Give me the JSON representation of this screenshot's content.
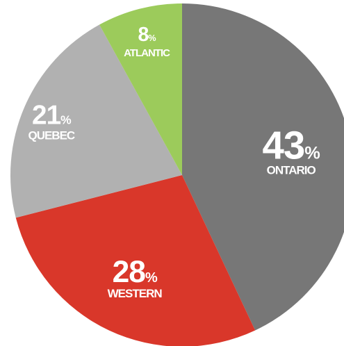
{
  "chart_data": {
    "type": "pie",
    "categories": [
      "ONTARIO",
      "WESTERN",
      "QUEBEC",
      "ATLANTIC"
    ],
    "values": [
      43,
      28,
      21,
      8
    ],
    "unit": "%",
    "colors": [
      "#777777",
      "#d9372a",
      "#b1b1b1",
      "#9ccb5b"
    ]
  }
}
